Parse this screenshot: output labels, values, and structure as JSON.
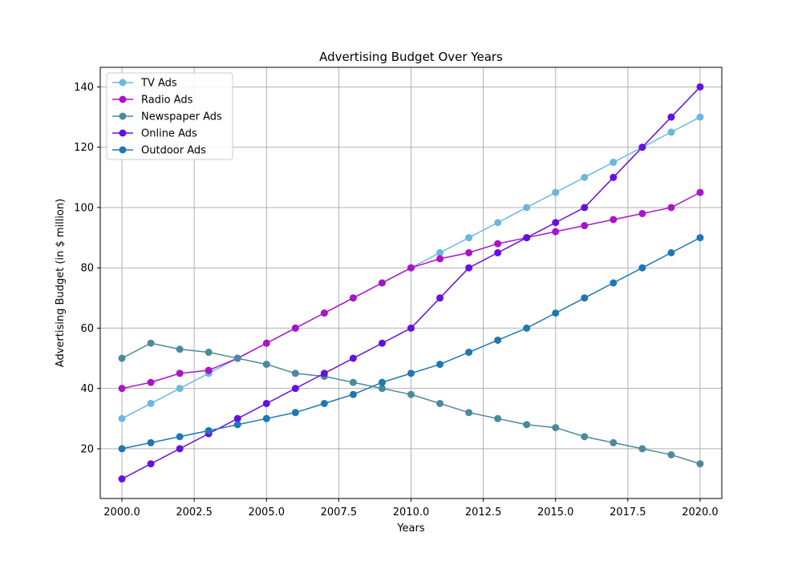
{
  "chart_data": {
    "type": "line",
    "title": "Advertising Budget Over Years",
    "xlabel": "Years",
    "ylabel": "Advertising Budget (in $ million)",
    "xlim": [
      1999.25,
      2020.75
    ],
    "ylim": [
      3.5,
      146.5
    ],
    "grid": true,
    "legend_position": "upper-left",
    "x_ticks": [
      2000,
      2002.5,
      2005,
      2007.5,
      2010,
      2012.5,
      2015,
      2017.5,
      2020
    ],
    "x_tick_labels": [
      "2000.0",
      "2002.5",
      "2005.0",
      "2007.5",
      "2010.0",
      "2012.5",
      "2015.0",
      "2017.5",
      "2020.0"
    ],
    "y_ticks": [
      20,
      40,
      60,
      80,
      100,
      120,
      140
    ],
    "y_tick_labels": [
      "20",
      "40",
      "60",
      "80",
      "100",
      "120",
      "140"
    ],
    "x": [
      2000,
      2001,
      2002,
      2003,
      2004,
      2005,
      2006,
      2007,
      2008,
      2009,
      2010,
      2011,
      2012,
      2013,
      2014,
      2015,
      2016,
      2017,
      2018,
      2019,
      2020
    ],
    "series": [
      {
        "name": "TV Ads",
        "color": "#6bb7e0",
        "values": [
          30,
          35,
          40,
          45,
          50,
          55,
          60,
          65,
          70,
          75,
          80,
          85,
          90,
          95,
          100,
          105,
          110,
          115,
          120,
          125,
          130
        ]
      },
      {
        "name": "Radio Ads",
        "color": "#a815c8",
        "values": [
          40,
          42,
          45,
          46,
          50,
          55,
          60,
          65,
          70,
          75,
          80,
          83,
          85,
          88,
          90,
          92,
          94,
          96,
          98,
          100,
          105
        ]
      },
      {
        "name": "Newspaper Ads",
        "color": "#4c8a9a",
        "values": [
          50,
          55,
          53,
          52,
          50,
          48,
          45,
          44,
          42,
          40,
          38,
          35,
          32,
          30,
          28,
          27,
          24,
          22,
          20,
          18,
          15
        ]
      },
      {
        "name": "Online Ads",
        "color": "#6510e0",
        "values": [
          10,
          15,
          20,
          25,
          30,
          35,
          40,
          45,
          50,
          55,
          60,
          70,
          80,
          85,
          90,
          95,
          100,
          110,
          120,
          130,
          140
        ]
      },
      {
        "name": "Outdoor Ads",
        "color": "#1f77b4",
        "values": [
          20,
          22,
          24,
          26,
          28,
          30,
          32,
          35,
          38,
          42,
          45,
          48,
          52,
          56,
          60,
          65,
          70,
          75,
          80,
          85,
          90
        ]
      }
    ]
  }
}
